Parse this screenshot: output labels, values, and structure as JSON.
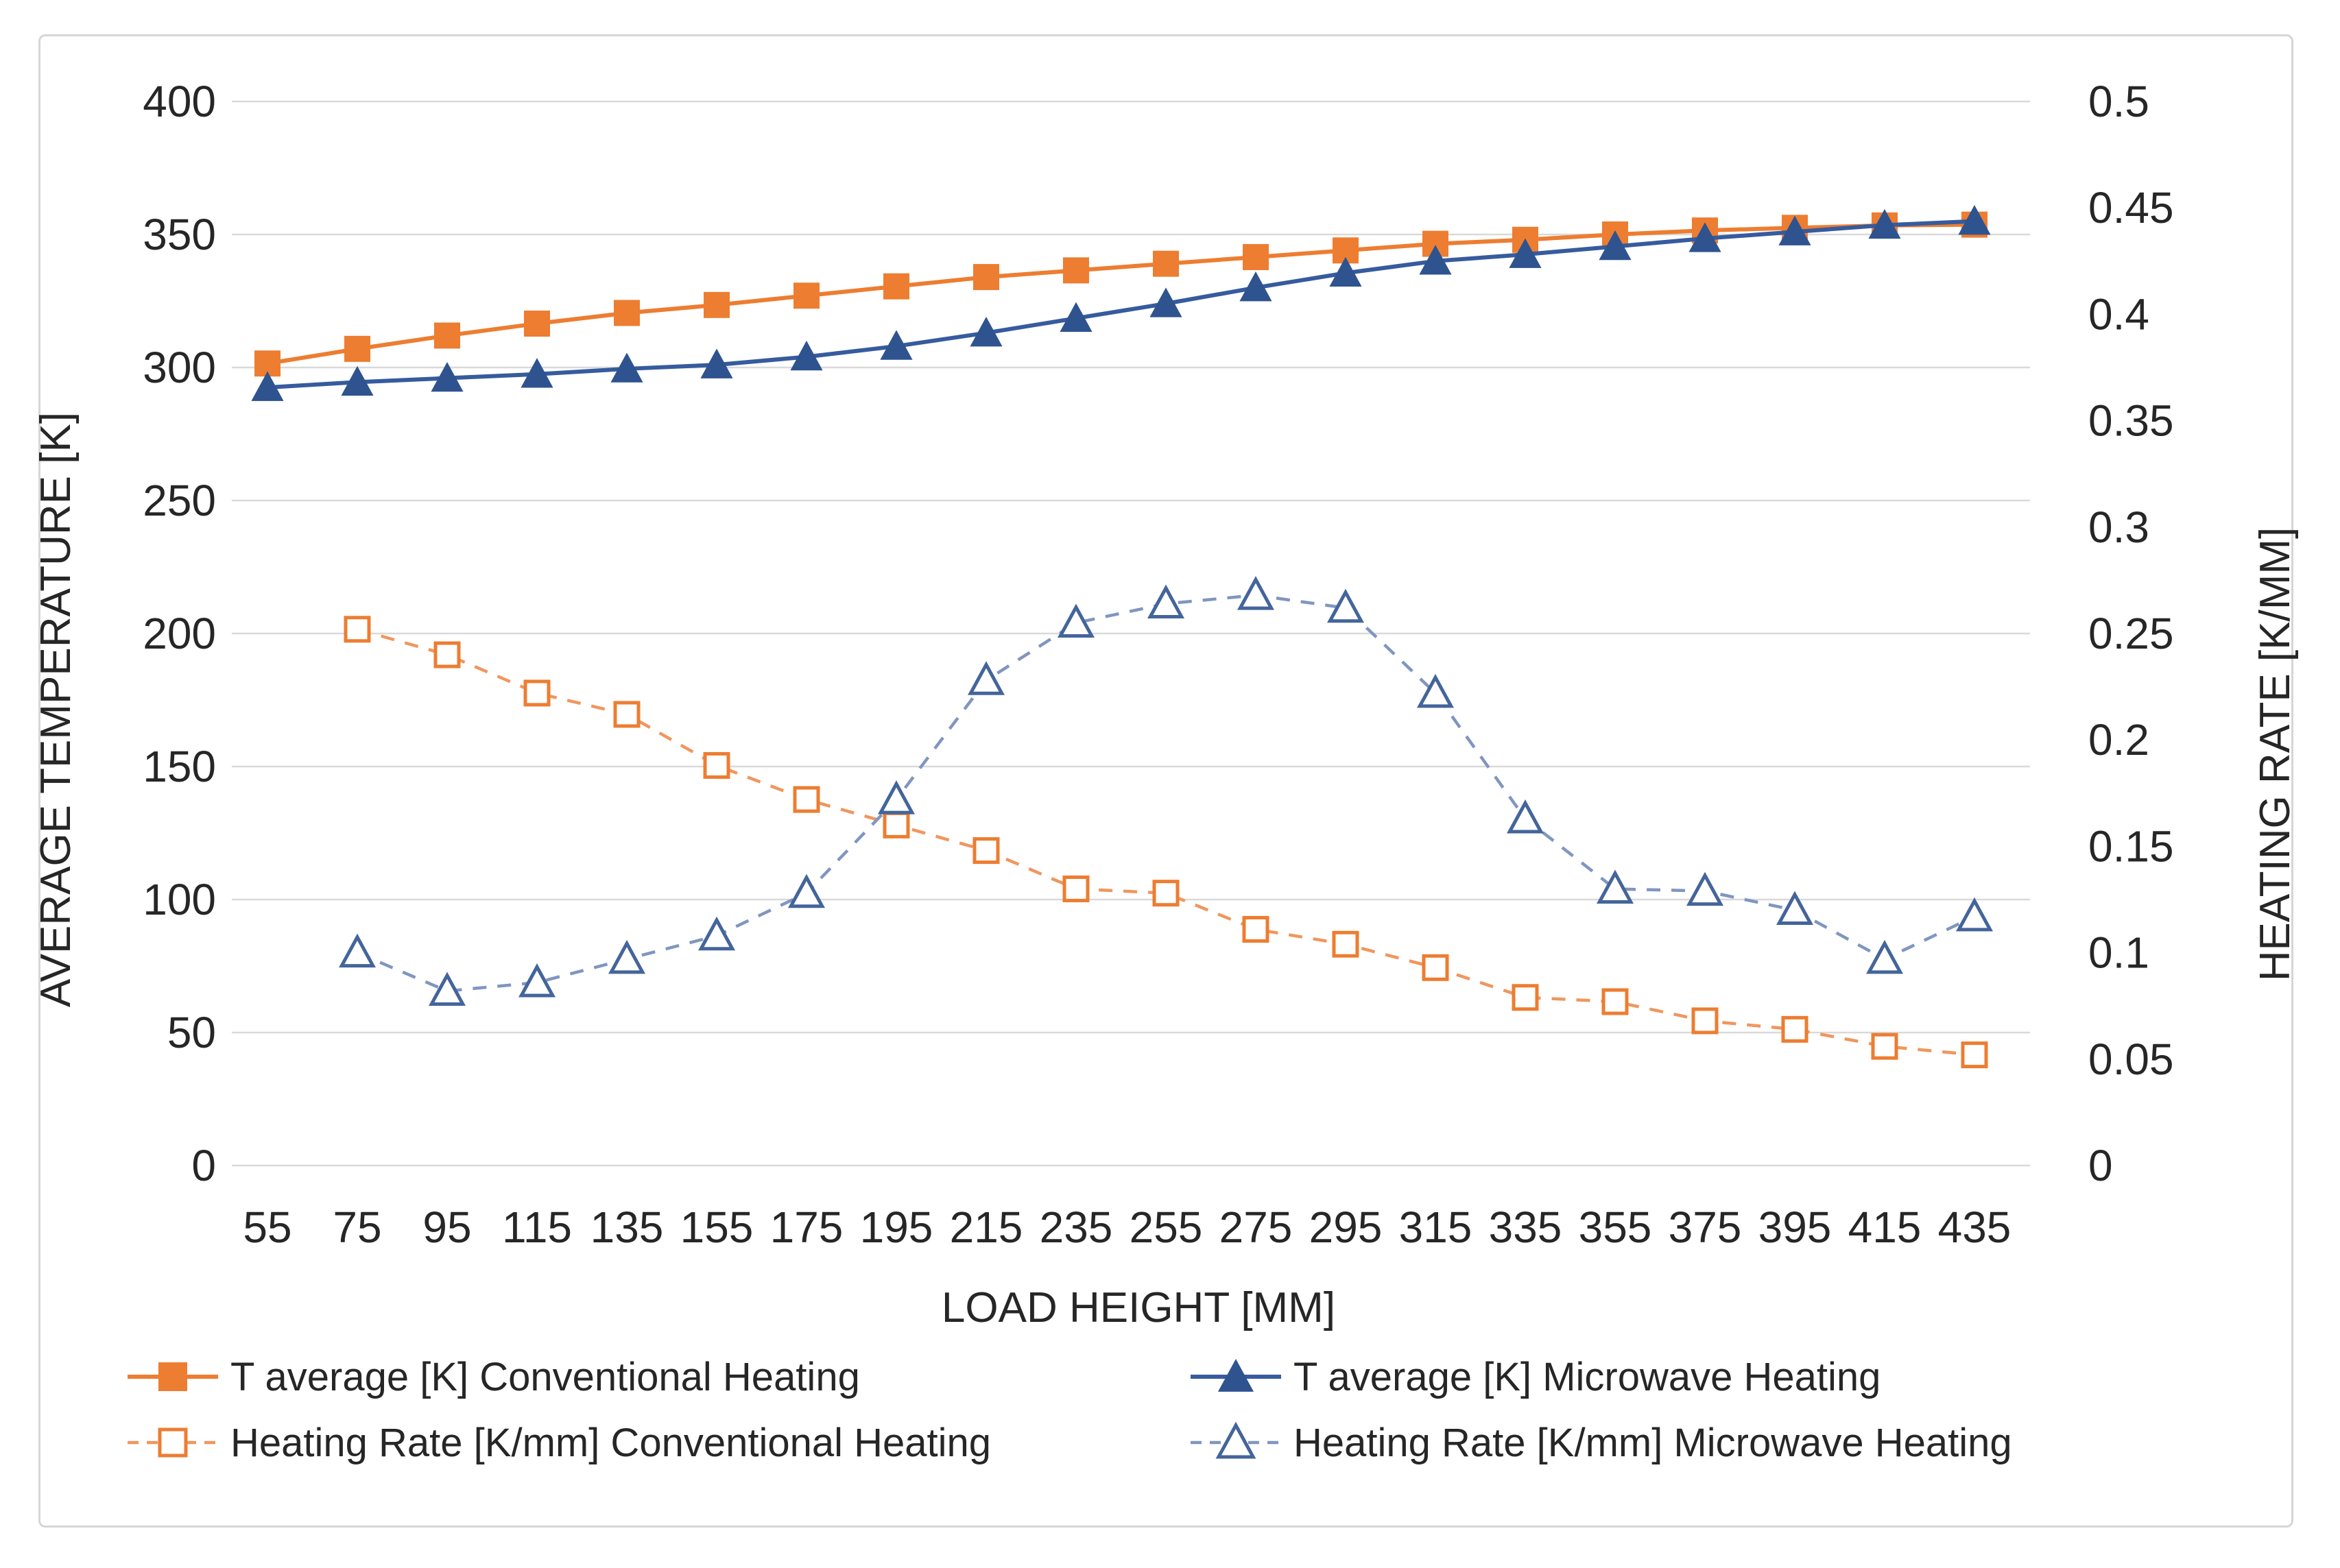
{
  "chart_data": {
    "type": "line",
    "title": "",
    "xlabel": "LOAD HEIGHT  [MM]",
    "ylabel_left": "AVERAGE TEMPERATURE  [K]",
    "ylabel_right": "HEATING RATE [K/MM]",
    "categories": [
      55,
      75,
      95,
      115,
      135,
      155,
      175,
      195,
      215,
      235,
      255,
      275,
      295,
      315,
      335,
      355,
      375,
      395,
      415,
      435
    ],
    "left_axis": {
      "min": 0,
      "max": 400,
      "step": 50,
      "tick_labels": [
        "400",
        "350",
        "300",
        "250",
        "200",
        "150",
        "100",
        "50",
        "0"
      ]
    },
    "right_axis": {
      "min": 0,
      "max": 0.5,
      "step": 0.05,
      "tick_labels": [
        "0.5",
        "0.45",
        "0.4",
        "0.35",
        "0.3",
        "0.25",
        "0.2",
        "0.15",
        "0.1",
        "0.05",
        "0"
      ]
    },
    "grid": "horizontal",
    "legend_position": "bottom",
    "series": [
      {
        "name": "T average [K] Conventional Heating",
        "axis": "left",
        "marker": "square-filled",
        "line_style": "solid",
        "color": "#ED7D31",
        "line_color": "#ED7D31",
        "values": [
          301.5,
          307,
          312,
          316.5,
          320.5,
          323.5,
          327,
          330.5,
          334,
          336.5,
          339,
          341.5,
          344,
          346.5,
          348,
          350,
          351.5,
          352.5,
          353.4,
          353.7
        ]
      },
      {
        "name": "T average [K] Microwave Heating",
        "axis": "left",
        "marker": "triangle-filled",
        "line_style": "solid",
        "color": "#2E538F",
        "line_color": "#365B9E",
        "values": [
          292.5,
          294.5,
          296,
          297.5,
          299.5,
          301,
          304,
          308,
          313,
          318.5,
          324,
          330,
          335.5,
          340,
          342.5,
          345.5,
          348.5,
          351,
          353.5,
          355
        ]
      },
      {
        "name": "Heating Rate [K/mm] Conventional Heating",
        "axis": "right",
        "marker": "square-open",
        "line_style": "dashed",
        "color": "#ED7D31",
        "line_color": "#F0965E",
        "values": [
          null,
          0.252,
          0.24,
          0.222,
          0.212,
          0.188,
          0.172,
          0.16,
          0.148,
          0.13,
          0.128,
          0.111,
          0.104,
          0.093,
          0.079,
          0.077,
          0.068,
          0.064,
          0.056,
          0.052
        ]
      },
      {
        "name": "Heating Rate [K/mm] Microwave Heating",
        "axis": "right",
        "marker": "triangle-open",
        "line_style": "dashed",
        "color": "#44659B",
        "line_color": "#8096C0",
        "values": [
          null,
          0.1,
          0.082,
          0.086,
          0.097,
          0.108,
          0.128,
          0.172,
          0.228,
          0.255,
          0.264,
          0.268,
          0.262,
          0.222,
          0.163,
          0.13,
          0.129,
          0.12,
          0.097,
          0.117
        ]
      }
    ],
    "colors": {
      "gridline": "#D9D9D9",
      "text": "#262626",
      "frame_border": "#D6D6D6",
      "background": "#FFFFFF"
    }
  },
  "legend": {
    "items": [
      {
        "label": "T average [K] Conventional Heating",
        "series_index": 0
      },
      {
        "label": "T average [K] Microwave Heating",
        "series_index": 1
      },
      {
        "label": "Heating Rate [K/mm] Conventional Heating",
        "series_index": 2
      },
      {
        "label": "Heating Rate [K/mm] Microwave Heating",
        "series_index": 3
      }
    ]
  }
}
